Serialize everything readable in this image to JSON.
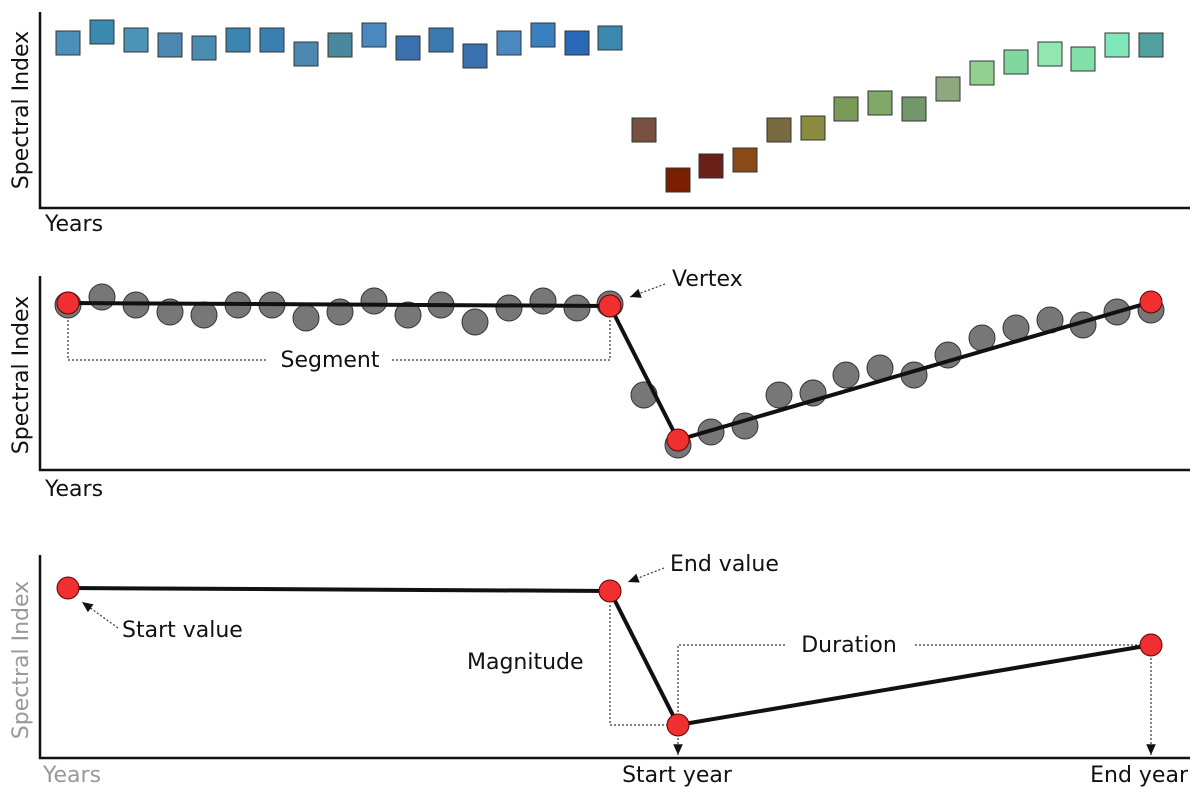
{
  "panels": [
    {
      "y_label": "Spectral Index",
      "x_label": "Years"
    },
    {
      "y_label": "Spectral Index",
      "x_label": "Years",
      "annotations": {
        "vertex": "Vertex",
        "segment": "Segment"
      }
    },
    {
      "y_label": "Spectral Index",
      "x_label": "Years",
      "annotations": {
        "start_value": "Start value",
        "end_value": "End value",
        "magnitude": "Magnitude",
        "duration": "Duration",
        "start_year": "Start year",
        "end_year": "End year"
      }
    }
  ]
}
